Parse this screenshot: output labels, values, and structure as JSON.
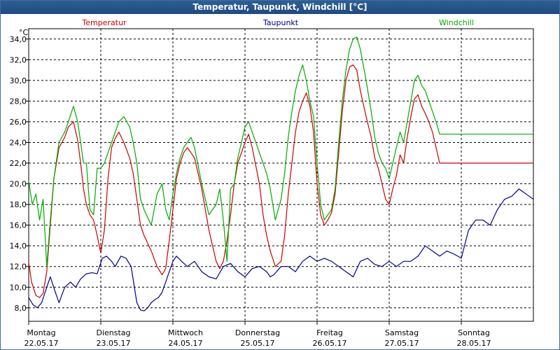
{
  "window": {
    "title": "Temperatur, Taupunkt, Windchill [°C]"
  },
  "chart_data": {
    "type": "line",
    "title": "Temperatur, Taupunkt, Windchill [°C]",
    "ylabel": "°C",
    "xlabel": "",
    "ylim": [
      6.7,
      35.0
    ],
    "yticks": [
      8,
      10,
      12,
      14,
      16,
      18,
      20,
      22,
      24,
      26,
      28,
      30,
      32,
      34
    ],
    "ytick_labels": [
      "8,0",
      "10,0",
      "12,0",
      "14,0",
      "16,0",
      "18,0",
      "20,0",
      "22,0",
      "24,0",
      "26,0",
      "28,0",
      "30,0",
      "32,0",
      "34,0"
    ],
    "x_range_days": [
      0,
      7
    ],
    "days": [
      {
        "name": "Montag",
        "date": "22.05.17"
      },
      {
        "name": "Dienstag",
        "date": "23.05.17"
      },
      {
        "name": "Mittwoch",
        "date": "24.05.17"
      },
      {
        "name": "Donnerstag",
        "date": "25.05.17"
      },
      {
        "name": "Freitag",
        "date": "26.05.17"
      },
      {
        "name": "Samstag",
        "date": "27.05.17"
      },
      {
        "name": "Sonntag",
        "date": "28.05.17"
      }
    ],
    "grid": true,
    "series": [
      {
        "name": "Temperatur",
        "color": "#cc0000",
        "x": [
          0,
          0.04,
          0.1,
          0.15,
          0.2,
          0.25,
          0.3,
          0.35,
          0.42,
          0.5,
          0.55,
          0.62,
          0.68,
          0.72,
          0.76,
          0.8,
          0.85,
          0.9,
          0.95,
          1.0,
          1.05,
          1.1,
          1.15,
          1.2,
          1.25,
          1.32,
          1.4,
          1.45,
          1.5,
          1.55,
          1.6,
          1.7,
          1.78,
          1.85,
          1.9,
          1.95,
          2.0,
          2.05,
          2.1,
          2.15,
          2.2,
          2.25,
          2.3,
          2.4,
          2.5,
          2.6,
          2.65,
          2.7,
          2.75,
          2.8,
          2.85,
          2.9,
          2.95,
          3.0,
          3.05,
          3.1,
          3.2,
          3.25,
          3.3,
          3.35,
          3.42,
          3.5,
          3.55,
          3.6,
          3.65,
          3.7,
          3.75,
          3.8,
          3.85,
          3.9,
          3.95,
          4.0,
          4.05,
          4.1,
          4.15,
          4.2,
          4.25,
          4.3,
          4.35,
          4.4,
          4.45,
          4.5,
          4.55,
          4.6,
          4.68,
          4.75,
          4.8,
          4.85,
          4.9,
          4.95,
          5.0,
          5.05,
          5.1,
          5.15,
          5.2,
          5.25,
          5.3,
          5.35,
          5.4,
          5.45,
          5.5,
          5.55,
          5.6,
          5.65,
          5.7,
          5.75,
          5.8,
          5.85,
          5.9,
          5.95,
          6.0,
          6.05,
          6.1,
          6.15,
          6.2,
          6.25,
          6.3,
          6.35,
          6.4,
          6.45,
          6.5,
          6.55,
          6.6,
          6.65,
          6.7,
          6.75,
          6.8,
          6.85,
          6.9,
          6.95,
          7.0
        ],
        "y": [
          12.4,
          10.5,
          9.2,
          9.0,
          9.4,
          11.5,
          16.0,
          20.5,
          23.5,
          24.5,
          25.5,
          26.0,
          24.2,
          22.0,
          19.5,
          18.0,
          17.0,
          16.5,
          15.0,
          13.3,
          15.5,
          20.5,
          23.5,
          24.4,
          25.0,
          24.0,
          22.5,
          21.0,
          18.5,
          16.0,
          15.0,
          13.5,
          12.0,
          11.2,
          11.8,
          14.5,
          17.5,
          20.5,
          22.0,
          23.0,
          23.5,
          23.0,
          22.5,
          19.5,
          15.5,
          12.5,
          11.8,
          12.5,
          14.5,
          17.0,
          20.0,
          22.0,
          23.0,
          24.0,
          24.8,
          23.5,
          20.0,
          17.0,
          15.0,
          13.5,
          12.0,
          12.5,
          15.0,
          19.0,
          22.0,
          25.0,
          27.0,
          28.0,
          28.8,
          27.5,
          25.0,
          20.0,
          17.0,
          16.0,
          16.5,
          17.2,
          19.0,
          23.0,
          27.0,
          30.0,
          31.3,
          31.5,
          31.0,
          29.0,
          26.5,
          24.5,
          22.5,
          21.5,
          20.0,
          18.5,
          18.0,
          19.5,
          20.8,
          22.8,
          22.0,
          24.5,
          26.5,
          28.2,
          28.6,
          27.5,
          26.8,
          26.0,
          25.0,
          23.5,
          22.0,
          22.0,
          22.0,
          22.0,
          22.0,
          22.0,
          22.0,
          22.0,
          22.0,
          22.0,
          22.0,
          22.0,
          22.0,
          22.0,
          22.0,
          22.0,
          22.0,
          22.0,
          22.0,
          22.0,
          22.0,
          22.0,
          22.0,
          22.0,
          22.0,
          22.0,
          22.0
        ]
      },
      {
        "name": "Taupunkt",
        "color": "#00008b",
        "x": [
          0,
          0.06,
          0.12,
          0.18,
          0.25,
          0.3,
          0.37,
          0.42,
          0.5,
          0.58,
          0.65,
          0.72,
          0.8,
          0.88,
          0.95,
          1.02,
          1.08,
          1.15,
          1.2,
          1.28,
          1.35,
          1.42,
          1.5,
          1.55,
          1.6,
          1.65,
          1.7,
          1.75,
          1.8,
          1.85,
          1.9,
          1.95,
          2.0,
          2.05,
          2.12,
          2.2,
          2.3,
          2.4,
          2.5,
          2.6,
          2.7,
          2.8,
          2.9,
          3.0,
          3.1,
          3.2,
          3.3,
          3.35,
          3.4,
          3.5,
          3.6,
          3.7,
          3.8,
          3.9,
          4.0,
          4.1,
          4.2,
          4.3,
          4.4,
          4.5,
          4.6,
          4.7,
          4.8,
          4.9,
          5.0,
          5.1,
          5.2,
          5.3,
          5.4,
          5.5,
          5.6,
          5.7,
          5.8,
          5.9,
          6.0,
          6.1,
          6.2,
          6.3,
          6.4,
          6.5,
          6.6,
          6.7,
          6.8,
          6.9,
          7.0
        ],
        "y": [
          9.0,
          8.3,
          8.0,
          8.5,
          10.0,
          11.0,
          9.5,
          8.5,
          10.0,
          10.5,
          10.0,
          10.8,
          11.3,
          11.4,
          11.3,
          12.8,
          13.0,
          12.5,
          12.0,
          13.0,
          12.8,
          12.0,
          8.5,
          7.8,
          7.7,
          8.0,
          8.5,
          8.8,
          9.0,
          9.5,
          10.5,
          11.5,
          12.5,
          13.0,
          12.5,
          12.0,
          12.5,
          11.5,
          11.0,
          10.8,
          12.0,
          12.3,
          11.5,
          11.0,
          11.8,
          12.0,
          11.5,
          11.0,
          11.2,
          12.0,
          12.0,
          11.5,
          12.5,
          13.0,
          12.5,
          12.8,
          12.5,
          12.0,
          11.5,
          11.0,
          12.5,
          12.8,
          12.2,
          12.0,
          12.5,
          12.0,
          12.5,
          12.5,
          13.0,
          14.0,
          13.5,
          13.0,
          13.5,
          13.2,
          12.8,
          15.5,
          16.5,
          16.5,
          16.0,
          17.5,
          18.5,
          18.8,
          19.5,
          19.0,
          18.5
        ]
      },
      {
        "name": "Windchill",
        "color": "#00aa00",
        "x": [
          0,
          0.05,
          0.1,
          0.15,
          0.2,
          0.25,
          0.3,
          0.35,
          0.42,
          0.5,
          0.55,
          0.62,
          0.68,
          0.72,
          0.76,
          0.8,
          0.85,
          0.9,
          0.95,
          1.0,
          1.05,
          1.1,
          1.15,
          1.2,
          1.25,
          1.32,
          1.4,
          1.45,
          1.5,
          1.55,
          1.6,
          1.7,
          1.78,
          1.85,
          1.9,
          1.95,
          2.0,
          2.05,
          2.1,
          2.15,
          2.2,
          2.25,
          2.3,
          2.4,
          2.5,
          2.6,
          2.65,
          2.7,
          2.75,
          2.8,
          2.85,
          2.9,
          2.95,
          3.0,
          3.05,
          3.1,
          3.2,
          3.25,
          3.3,
          3.35,
          3.42,
          3.5,
          3.55,
          3.6,
          3.65,
          3.7,
          3.75,
          3.8,
          3.85,
          3.9,
          3.95,
          4.0,
          4.05,
          4.1,
          4.15,
          4.2,
          4.25,
          4.3,
          4.35,
          4.4,
          4.45,
          4.5,
          4.55,
          4.6,
          4.68,
          4.75,
          4.8,
          4.85,
          4.9,
          4.95,
          5.0,
          5.05,
          5.1,
          5.15,
          5.2,
          5.25,
          5.3,
          5.35,
          5.4,
          5.45,
          5.5,
          5.55,
          5.6,
          5.65,
          5.7,
          5.75,
          5.8,
          5.85,
          5.9,
          5.95,
          6.0,
          6.05,
          6.1,
          6.15,
          6.2,
          6.25,
          6.3,
          6.35,
          6.4,
          6.45,
          6.5,
          6.55,
          6.6,
          6.65,
          6.7,
          6.75,
          6.8,
          6.85,
          6.9,
          6.95,
          7.0
        ],
        "y": [
          20.3,
          18.0,
          19.0,
          16.5,
          18.5,
          12.0,
          16.5,
          20.5,
          24.0,
          25.0,
          26.0,
          27.5,
          26.0,
          24.0,
          22.0,
          22.0,
          17.5,
          17.0,
          21.5,
          21.5,
          22.0,
          23.0,
          24.0,
          25.0,
          26.0,
          26.5,
          25.5,
          24.0,
          22.0,
          18.5,
          17.5,
          16.0,
          19.0,
          20.0,
          17.5,
          16.5,
          19.0,
          21.0,
          22.5,
          23.5,
          24.0,
          24.5,
          23.5,
          20.0,
          17.0,
          18.0,
          19.5,
          16.5,
          12.5,
          19.5,
          20.0,
          22.5,
          24.0,
          25.5,
          26.0,
          25.0,
          23.0,
          22.0,
          21.0,
          19.5,
          16.5,
          18.5,
          21.0,
          24.5,
          27.0,
          29.0,
          30.5,
          31.5,
          30.0,
          28.0,
          26.5,
          22.0,
          18.0,
          16.5,
          17.0,
          17.5,
          19.5,
          24.0,
          28.0,
          31.0,
          33.0,
          34.0,
          34.2,
          33.0,
          30.0,
          27.0,
          24.5,
          23.0,
          22.0,
          21.5,
          20.5,
          22.0,
          23.5,
          25.0,
          24.0,
          26.0,
          28.0,
          30.0,
          30.5,
          29.5,
          29.0,
          28.0,
          27.0,
          26.0,
          24.8,
          24.8,
          24.8,
          24.8,
          24.8,
          24.8,
          24.8,
          24.8,
          24.8,
          24.8,
          24.8,
          24.8,
          24.8,
          24.8,
          24.8,
          24.8,
          24.8,
          24.8,
          24.8,
          24.8,
          24.8,
          24.8,
          24.8,
          24.8,
          24.8,
          24.8,
          24.8
        ]
      }
    ]
  }
}
